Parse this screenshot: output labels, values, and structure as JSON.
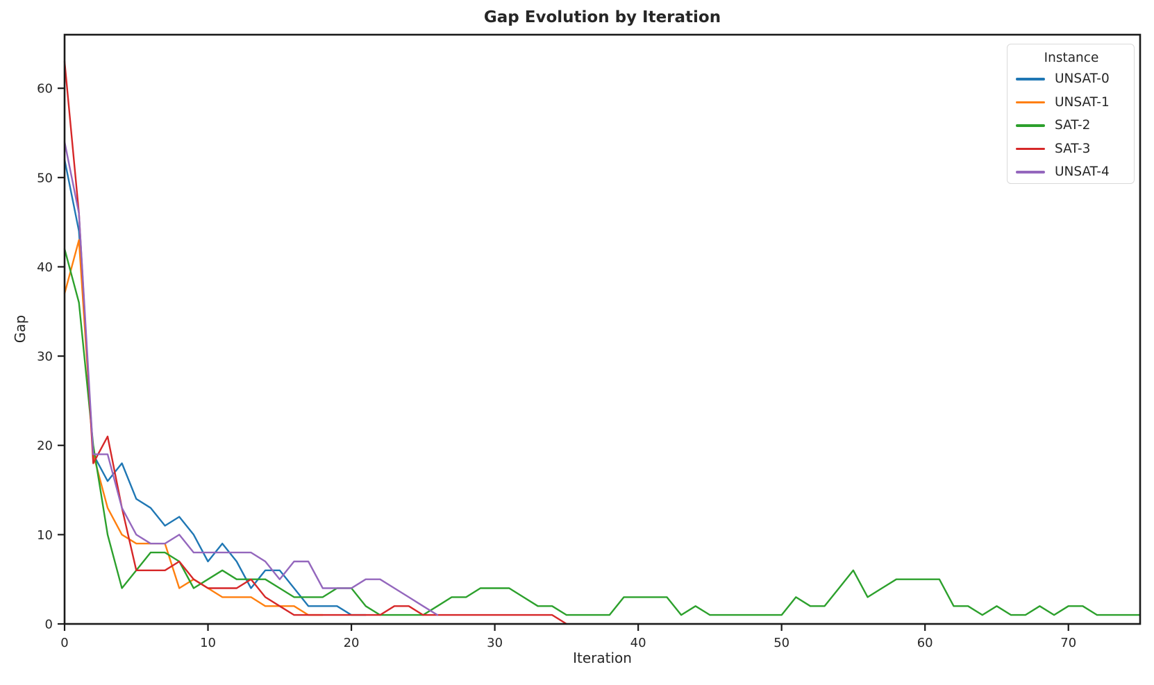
{
  "chart_data": {
    "type": "line",
    "title": "Gap Evolution by Iteration",
    "xlabel": "Iteration",
    "ylabel": "Gap",
    "xlim": [
      0,
      75
    ],
    "ylim": [
      0,
      66
    ],
    "x_ticks": [
      0,
      10,
      20,
      30,
      40,
      50,
      60,
      70
    ],
    "y_ticks": [
      0,
      10,
      20,
      30,
      40,
      50,
      60
    ],
    "grid": false,
    "background": "#ffffff",
    "spine_color": "#1a1a1a",
    "legend": {
      "title": "Instance",
      "position": "upper right"
    },
    "series": [
      {
        "name": "UNSAT-0",
        "color": "#1f77b4",
        "x_start": 0,
        "values": [
          52,
          44,
          19,
          16,
          18,
          14,
          13,
          11,
          12,
          10,
          7,
          9,
          7,
          4,
          6,
          6,
          4,
          2,
          2,
          2,
          1,
          1
        ]
      },
      {
        "name": "UNSAT-1",
        "color": "#ff7f0e",
        "x_start": 0,
        "values": [
          37,
          43,
          19,
          13,
          10,
          9,
          9,
          9,
          4,
          5,
          4,
          3,
          3,
          3,
          2,
          2,
          2,
          1,
          1
        ]
      },
      {
        "name": "SAT-2",
        "color": "#2ca02c",
        "x_start": 0,
        "values": [
          42,
          36,
          20,
          10,
          4,
          6,
          8,
          8,
          7,
          4,
          5,
          6,
          5,
          5,
          5,
          4,
          3,
          3,
          3,
          4,
          4,
          2,
          1,
          1,
          1,
          1,
          2,
          3,
          3,
          4,
          4,
          4,
          3,
          2,
          2,
          1,
          1,
          1,
          1,
          3,
          3,
          3,
          3,
          1,
          2,
          1,
          1,
          1,
          1,
          1,
          1,
          3,
          2,
          2,
          4,
          6,
          3,
          4,
          5,
          5,
          5,
          5,
          2,
          2,
          1,
          2,
          1,
          1,
          2,
          1,
          2,
          2,
          1,
          1,
          1,
          1
        ]
      },
      {
        "name": "SAT-3",
        "color": "#d62728",
        "x_start": 0,
        "values": [
          63,
          46,
          18,
          21,
          13,
          6,
          6,
          6,
          7,
          5,
          4,
          4,
          4,
          5,
          3,
          2,
          1,
          1,
          1,
          1,
          1,
          1,
          1,
          2,
          2,
          1,
          1,
          1,
          1,
          1,
          1,
          1,
          1,
          1,
          1,
          0
        ]
      },
      {
        "name": "UNSAT-4",
        "color": "#9467bd",
        "x_start": 0,
        "values": [
          54,
          46,
          19,
          19,
          13,
          10,
          9,
          9,
          10,
          8,
          8,
          8,
          8,
          8,
          7,
          5,
          7,
          7,
          4,
          4,
          4,
          5,
          5,
          4,
          3,
          2,
          1
        ]
      }
    ]
  }
}
